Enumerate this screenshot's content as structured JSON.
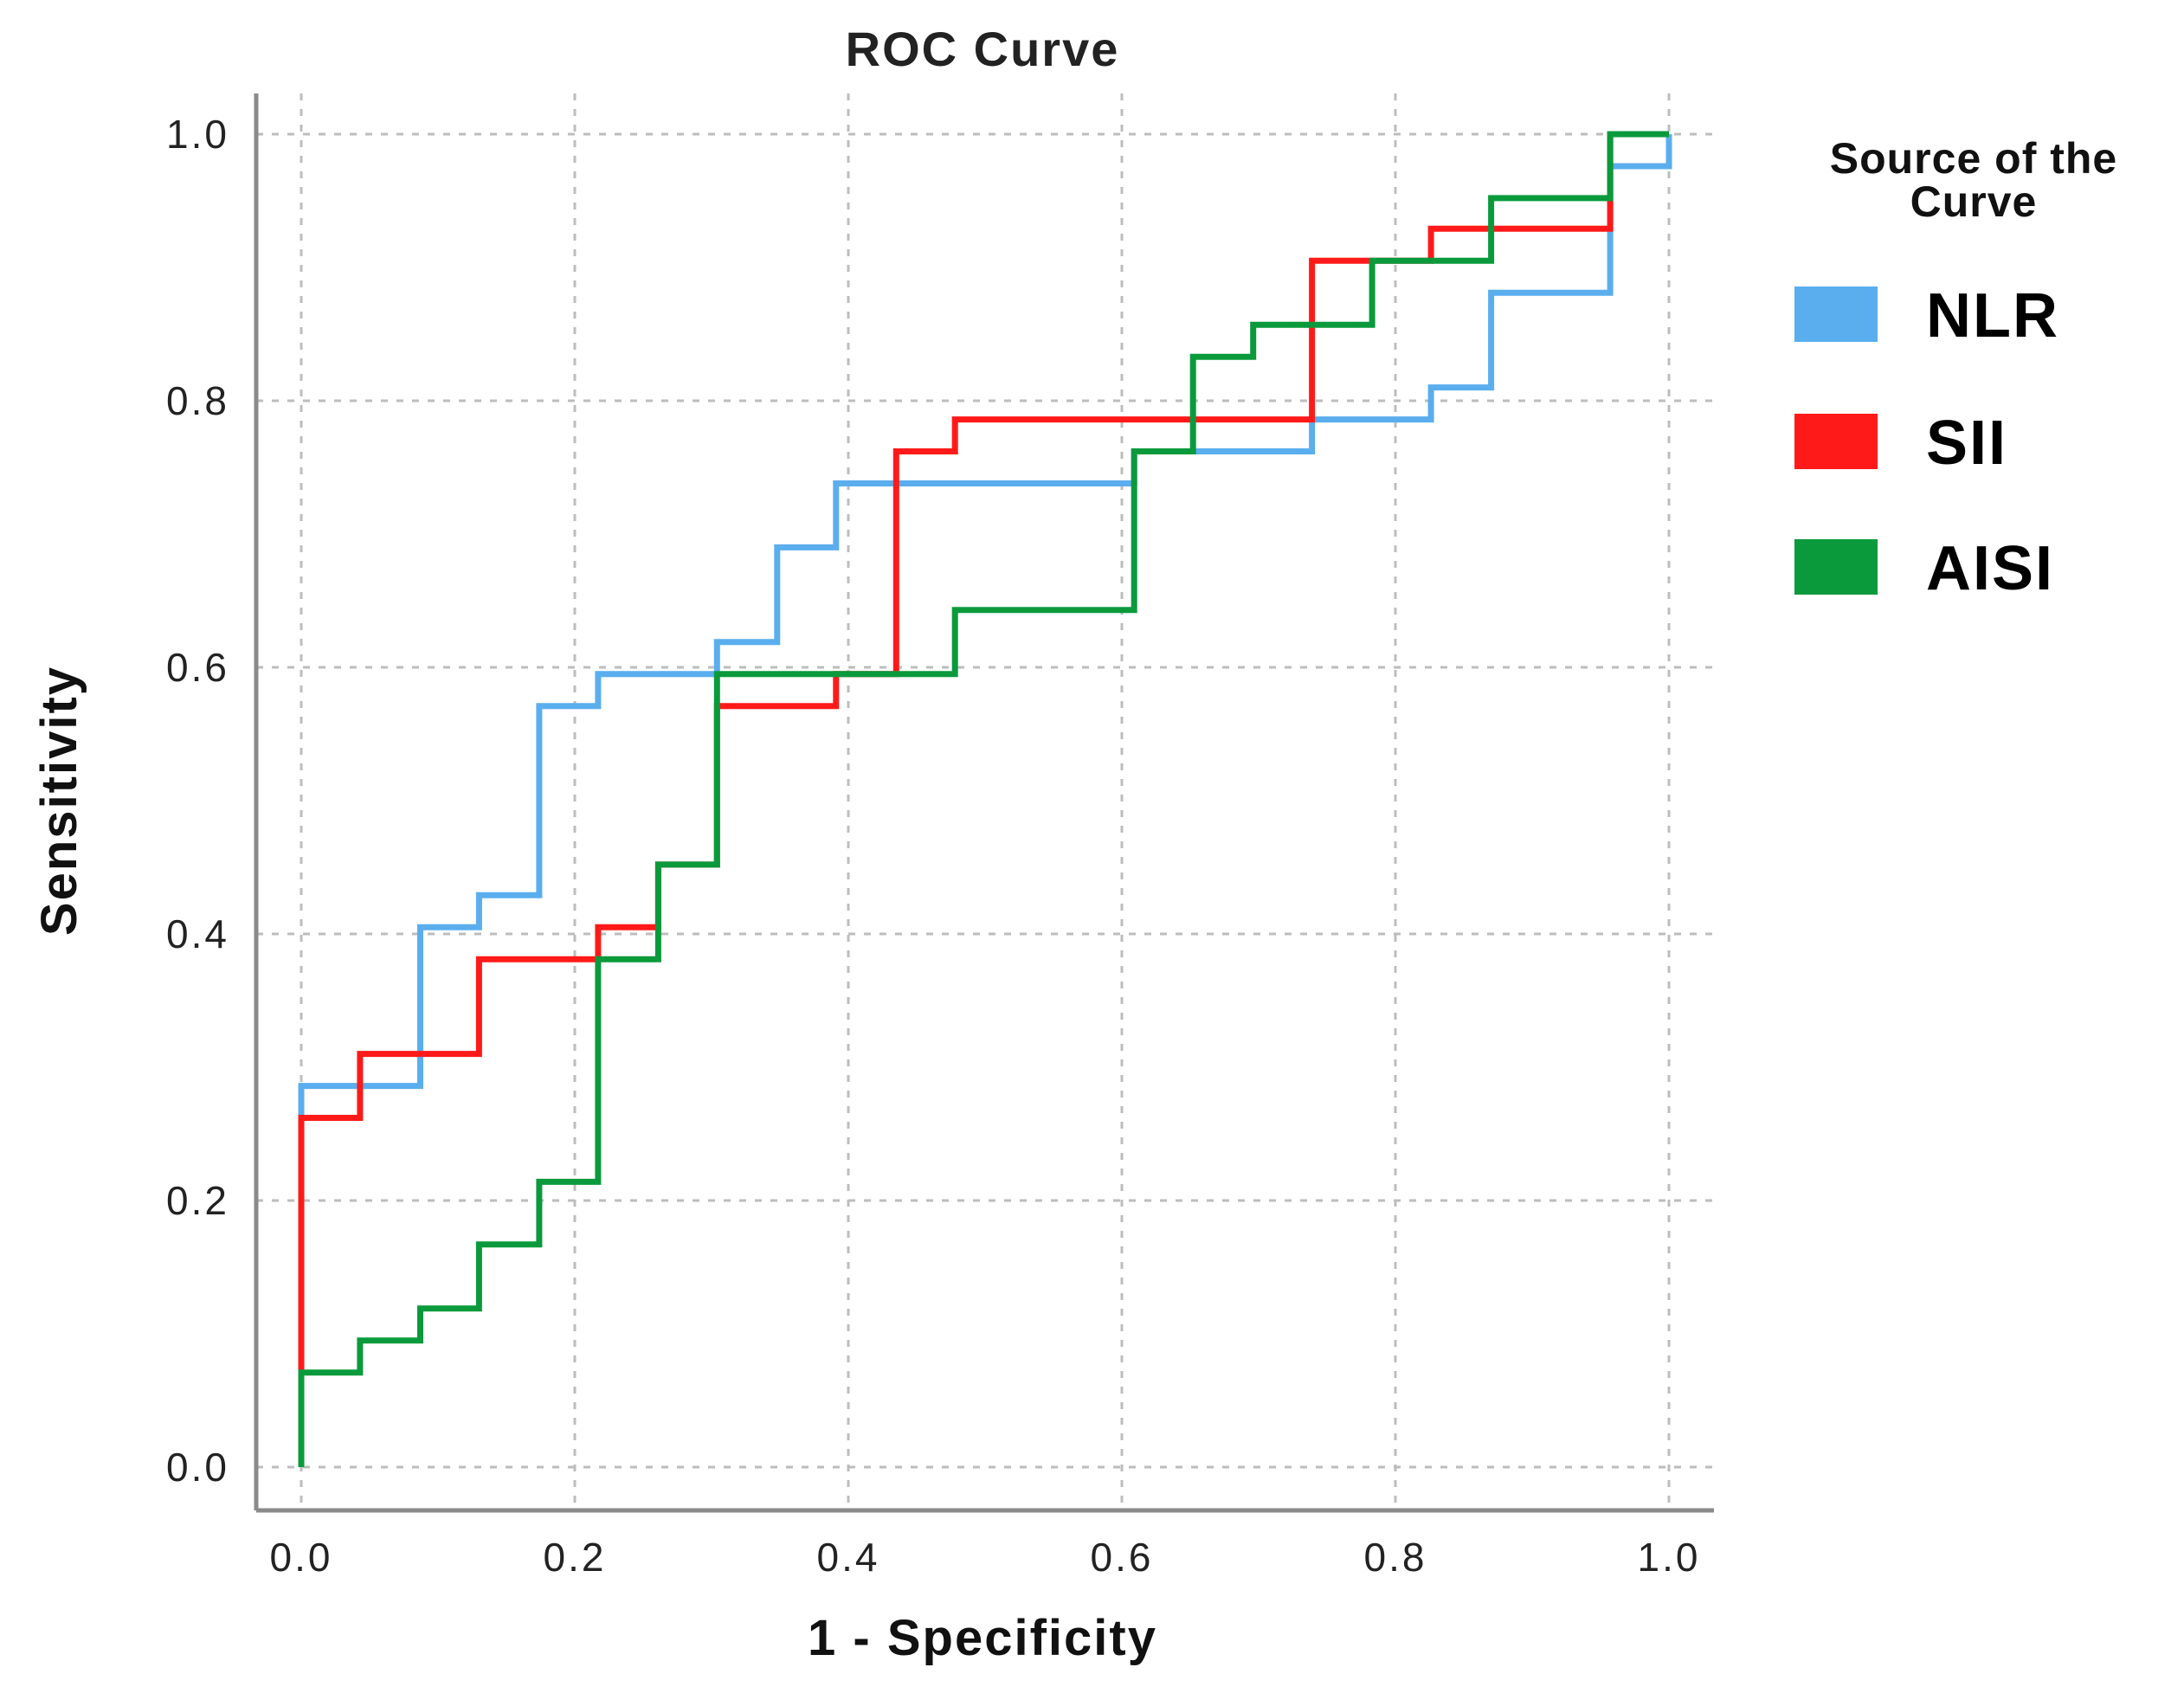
{
  "chart_data": {
    "type": "line",
    "title": "ROC Curve",
    "xlabel": "1 - Specificity",
    "ylabel": "Sensitivity",
    "xlim": [
      0,
      1
    ],
    "ylim": [
      0,
      1
    ],
    "xticks": [
      "0.0",
      "0.2",
      "0.4",
      "0.6",
      "0.8",
      "1.0"
    ],
    "yticks": [
      "0.0",
      "0.2",
      "0.4",
      "0.6",
      "0.8",
      "1.0"
    ],
    "grid": true,
    "legend": {
      "title_line1": "Source of the",
      "title_line2": "Curve",
      "position": "right"
    },
    "series": [
      {
        "name": "NLR",
        "color": "#5aaeee",
        "x": [
          0.0,
          0.0,
          0.087,
          0.087,
          0.13,
          0.13,
          0.174,
          0.174,
          0.217,
          0.217,
          0.304,
          0.304,
          0.348,
          0.348,
          0.391,
          0.391,
          0.609,
          0.609,
          0.739,
          0.739,
          0.826,
          0.826,
          0.87,
          0.87,
          0.957,
          0.957,
          1.0,
          1.0
        ],
        "y": [
          0.0,
          0.286,
          0.286,
          0.405,
          0.405,
          0.429,
          0.429,
          0.571,
          0.571,
          0.595,
          0.595,
          0.619,
          0.619,
          0.69,
          0.69,
          0.738,
          0.738,
          0.762,
          0.762,
          0.786,
          0.786,
          0.81,
          0.81,
          0.881,
          0.881,
          0.976,
          0.976,
          1.0
        ]
      },
      {
        "name": "SII",
        "color": "#ff1a1a",
        "x": [
          0.0,
          0.0,
          0.043,
          0.043,
          0.13,
          0.13,
          0.217,
          0.217,
          0.261,
          0.261,
          0.304,
          0.304,
          0.391,
          0.391,
          0.435,
          0.435,
          0.478,
          0.478,
          0.739,
          0.739,
          0.826,
          0.826,
          0.957,
          0.957,
          1.0
        ],
        "y": [
          0.0,
          0.262,
          0.262,
          0.31,
          0.31,
          0.381,
          0.381,
          0.405,
          0.405,
          0.452,
          0.452,
          0.571,
          0.571,
          0.595,
          0.595,
          0.762,
          0.762,
          0.786,
          0.786,
          0.905,
          0.905,
          0.929,
          0.929,
          1.0,
          1.0
        ]
      },
      {
        "name": "AISI",
        "color": "#0a9a3c",
        "x": [
          0.0,
          0.0,
          0.043,
          0.043,
          0.087,
          0.087,
          0.13,
          0.13,
          0.174,
          0.174,
          0.217,
          0.217,
          0.261,
          0.261,
          0.304,
          0.304,
          0.478,
          0.478,
          0.609,
          0.609,
          0.652,
          0.652,
          0.696,
          0.696,
          0.783,
          0.783,
          0.87,
          0.87,
          0.957,
          0.957,
          1.0
        ],
        "y": [
          0.0,
          0.071,
          0.071,
          0.095,
          0.095,
          0.119,
          0.119,
          0.167,
          0.167,
          0.214,
          0.214,
          0.381,
          0.381,
          0.452,
          0.452,
          0.595,
          0.595,
          0.643,
          0.643,
          0.762,
          0.762,
          0.833,
          0.833,
          0.857,
          0.857,
          0.905,
          0.905,
          0.952,
          0.952,
          1.0,
          1.0
        ]
      }
    ]
  }
}
